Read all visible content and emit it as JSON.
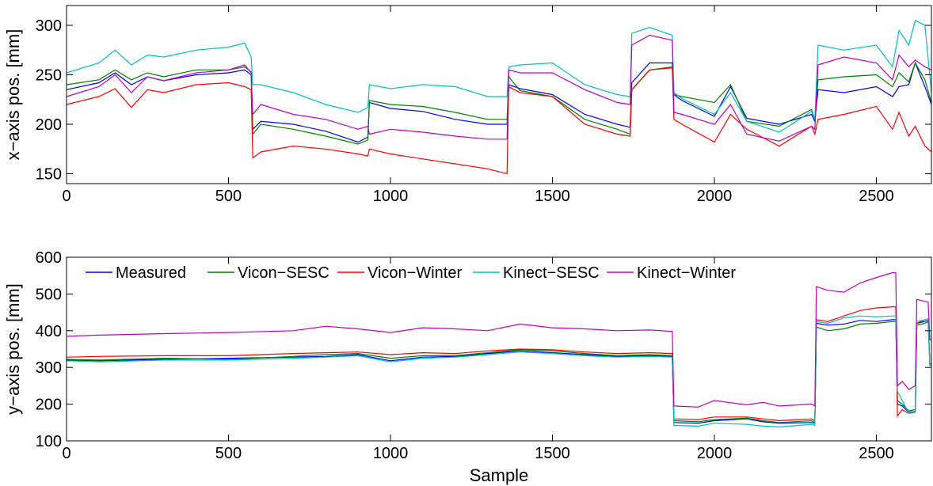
{
  "chart_data": [
    {
      "type": "line",
      "title": "",
      "xlabel": "",
      "ylabel": "x−axis pos. [mm]",
      "xlim": [
        0,
        2670
      ],
      "ylim": [
        140,
        320
      ],
      "xticks": [
        0,
        500,
        1000,
        1500,
        2000,
        2500
      ],
      "yticks": [
        150,
        200,
        250,
        300
      ],
      "grid": false,
      "series": [
        {
          "name": "Measured",
          "color": "#0000ff",
          "x": [
            0,
            100,
            150,
            200,
            250,
            300,
            400,
            500,
            550,
            570,
            575,
            600,
            700,
            800,
            900,
            930,
            935,
            1000,
            1100,
            1200,
            1300,
            1360,
            1365,
            1400,
            1500,
            1600,
            1700,
            1740,
            1745,
            1800,
            1870,
            1875,
            1900,
            2000,
            2050,
            2100,
            2200,
            2300,
            2310,
            2320,
            2400,
            2500,
            2550,
            2570,
            2600,
            2620,
            2650,
            2670
          ],
          "y": [
            235,
            242,
            252,
            240,
            248,
            244,
            250,
            252,
            255,
            250,
            195,
            203,
            200,
            193,
            182,
            187,
            222,
            216,
            213,
            205,
            200,
            200,
            240,
            236,
            230,
            210,
            200,
            197,
            242,
            262,
            262,
            230,
            224,
            208,
            238,
            206,
            200,
            210,
            203,
            235,
            232,
            238,
            228,
            238,
            240,
            262,
            238,
            220
          ]
        },
        {
          "name": "Vicon−SESC",
          "color": "#008000",
          "x": [
            0,
            100,
            150,
            200,
            250,
            300,
            400,
            500,
            550,
            570,
            575,
            600,
            700,
            800,
            900,
            930,
            935,
            1000,
            1100,
            1200,
            1300,
            1360,
            1365,
            1400,
            1500,
            1600,
            1700,
            1740,
            1745,
            1800,
            1870,
            1875,
            1900,
            2000,
            2050,
            2100,
            2200,
            2300,
            2310,
            2320,
            2400,
            2500,
            2550,
            2570,
            2600,
            2620,
            2650,
            2670
          ],
          "y": [
            240,
            245,
            255,
            245,
            252,
            248,
            255,
            255,
            258,
            253,
            190,
            200,
            195,
            188,
            180,
            184,
            224,
            220,
            218,
            212,
            205,
            205,
            248,
            234,
            228,
            205,
            195,
            190,
            235,
            255,
            258,
            230,
            228,
            222,
            240,
            203,
            198,
            215,
            205,
            245,
            248,
            250,
            238,
            252,
            243,
            262,
            245,
            222
          ]
        },
        {
          "name": "Vicon−Winter",
          "color": "#ff0000",
          "x": [
            0,
            100,
            150,
            200,
            250,
            300,
            400,
            500,
            550,
            570,
            575,
            600,
            700,
            800,
            900,
            930,
            935,
            1000,
            1100,
            1200,
            1300,
            1360,
            1365,
            1400,
            1500,
            1600,
            1700,
            1740,
            1745,
            1800,
            1870,
            1875,
            1900,
            2000,
            2050,
            2100,
            2200,
            2300,
            2310,
            2320,
            2400,
            2500,
            2550,
            2570,
            2600,
            2620,
            2650,
            2670
          ],
          "y": [
            220,
            228,
            236,
            217,
            235,
            232,
            240,
            242,
            238,
            235,
            166,
            172,
            178,
            175,
            170,
            168,
            175,
            170,
            165,
            160,
            155,
            150,
            238,
            232,
            228,
            200,
            190,
            188,
            235,
            255,
            257,
            205,
            200,
            182,
            210,
            195,
            178,
            198,
            190,
            205,
            210,
            218,
            195,
            212,
            188,
            198,
            178,
            172
          ]
        },
        {
          "name": "Kinect−SESC",
          "color": "#00c0c0",
          "x": [
            0,
            100,
            150,
            200,
            250,
            300,
            400,
            500,
            550,
            570,
            575,
            600,
            700,
            800,
            900,
            930,
            935,
            1000,
            1100,
            1200,
            1300,
            1360,
            1365,
            1400,
            1500,
            1600,
            1700,
            1740,
            1745,
            1800,
            1870,
            1875,
            1900,
            2000,
            2050,
            2100,
            2200,
            2300,
            2310,
            2320,
            2400,
            2500,
            2550,
            2570,
            2600,
            2620,
            2650,
            2670
          ],
          "y": [
            252,
            262,
            275,
            260,
            270,
            268,
            275,
            278,
            282,
            268,
            240,
            240,
            232,
            220,
            212,
            217,
            240,
            236,
            240,
            238,
            228,
            228,
            258,
            260,
            262,
            240,
            230,
            228,
            292,
            298,
            290,
            232,
            226,
            210,
            232,
            203,
            192,
            213,
            205,
            280,
            275,
            280,
            258,
            295,
            280,
            305,
            300,
            232
          ]
        },
        {
          "name": "Kinect−Winter",
          "color": "#c000c0",
          "x": [
            0,
            100,
            150,
            200,
            250,
            300,
            400,
            500,
            550,
            570,
            575,
            600,
            700,
            800,
            900,
            930,
            935,
            1000,
            1100,
            1200,
            1300,
            1360,
            1365,
            1400,
            1500,
            1600,
            1700,
            1740,
            1745,
            1800,
            1870,
            1875,
            1900,
            2000,
            2050,
            2100,
            2200,
            2300,
            2310,
            2320,
            2400,
            2500,
            2550,
            2570,
            2600,
            2620,
            2650,
            2670
          ],
          "y": [
            228,
            238,
            250,
            232,
            248,
            244,
            252,
            255,
            260,
            252,
            210,
            220,
            210,
            205,
            195,
            198,
            190,
            195,
            192,
            188,
            185,
            185,
            255,
            252,
            252,
            235,
            222,
            220,
            280,
            290,
            285,
            212,
            210,
            200,
            220,
            190,
            183,
            198,
            195,
            260,
            268,
            262,
            245,
            270,
            258,
            265,
            258,
            255
          ]
        }
      ]
    },
    {
      "type": "line",
      "title": "",
      "xlabel": "Sample",
      "ylabel": "y−axis pos. [mm]",
      "xlim": [
        0,
        2670
      ],
      "ylim": [
        100,
        600
      ],
      "xticks": [
        0,
        500,
        1000,
        1500,
        2000,
        2500
      ],
      "yticks": [
        100,
        200,
        300,
        400,
        500,
        600
      ],
      "grid": false,
      "legend": "top",
      "series": [
        {
          "name": "Measured",
          "color": "#0000ff",
          "x": [
            0,
            100,
            300,
            500,
            700,
            800,
            900,
            1000,
            1100,
            1200,
            1300,
            1400,
            1500,
            1600,
            1700,
            1800,
            1870,
            1875,
            1950,
            2000,
            2100,
            2150,
            2200,
            2300,
            2310,
            2315,
            2350,
            2400,
            2450,
            2500,
            2550,
            2560,
            2565,
            2580,
            2600,
            2620,
            2625,
            2650,
            2660,
            2665,
            2670
          ],
          "y": [
            320,
            318,
            322,
            325,
            328,
            330,
            335,
            318,
            328,
            330,
            338,
            345,
            340,
            335,
            330,
            332,
            330,
            150,
            148,
            155,
            160,
            152,
            148,
            150,
            148,
            420,
            415,
            418,
            428,
            425,
            430,
            430,
            200,
            195,
            178,
            180,
            420,
            425,
            428,
            310,
            310
          ]
        },
        {
          "name": "Vicon−SESC",
          "color": "#008000",
          "x": [
            0,
            100,
            300,
            500,
            700,
            800,
            900,
            1000,
            1100,
            1200,
            1300,
            1400,
            1500,
            1600,
            1700,
            1800,
            1870,
            1875,
            1950,
            2000,
            2100,
            2150,
            2200,
            2300,
            2310,
            2315,
            2350,
            2400,
            2450,
            2500,
            2550,
            2560,
            2565,
            2580,
            2600,
            2620,
            2625,
            2650,
            2660,
            2665,
            2670
          ],
          "y": [
            322,
            320,
            325,
            322,
            330,
            335,
            338,
            325,
            332,
            332,
            340,
            348,
            345,
            338,
            332,
            335,
            332,
            155,
            152,
            158,
            162,
            155,
            150,
            155,
            150,
            410,
            400,
            405,
            418,
            420,
            425,
            425,
            210,
            200,
            182,
            185,
            415,
            420,
            425,
            305,
            305
          ]
        },
        {
          "name": "Vicon−Winter",
          "color": "#ff0000",
          "x": [
            0,
            100,
            300,
            500,
            700,
            800,
            900,
            1000,
            1100,
            1200,
            1300,
            1400,
            1500,
            1600,
            1700,
            1800,
            1870,
            1875,
            1950,
            2000,
            2100,
            2150,
            2200,
            2300,
            2310,
            2315,
            2350,
            2400,
            2450,
            2500,
            2550,
            2560,
            2565,
            2580,
            2600,
            2620,
            2625,
            2650,
            2660,
            2665,
            2670
          ],
          "y": [
            328,
            330,
            332,
            332,
            338,
            340,
            342,
            335,
            340,
            338,
            345,
            350,
            348,
            342,
            338,
            340,
            338,
            160,
            158,
            165,
            165,
            160,
            155,
            160,
            155,
            430,
            425,
            440,
            455,
            462,
            465,
            465,
            168,
            185,
            175,
            178,
            420,
            430,
            432,
            310,
            310
          ]
        },
        {
          "name": "Kinect−SESC",
          "color": "#00c0c0",
          "x": [
            0,
            100,
            300,
            500,
            700,
            800,
            900,
            1000,
            1100,
            1200,
            1300,
            1400,
            1500,
            1600,
            1700,
            1800,
            1870,
            1875,
            1950,
            2000,
            2100,
            2150,
            2200,
            2300,
            2310,
            2315,
            2350,
            2400,
            2450,
            2500,
            2550,
            2560,
            2565,
            2580,
            2600,
            2620,
            2625,
            2650,
            2660,
            2665,
            2670
          ],
          "y": [
            318,
            315,
            320,
            320,
            325,
            328,
            332,
            315,
            325,
            328,
            335,
            342,
            338,
            332,
            328,
            330,
            328,
            142,
            140,
            148,
            145,
            140,
            138,
            145,
            142,
            425,
            420,
            435,
            440,
            438,
            440,
            440,
            235,
            210,
            175,
            180,
            425,
            430,
            432,
            305,
            305
          ]
        },
        {
          "name": "Kinect−Winter",
          "color": "#c000c0",
          "x": [
            0,
            100,
            300,
            500,
            700,
            800,
            900,
            1000,
            1100,
            1200,
            1300,
            1400,
            1500,
            1600,
            1700,
            1800,
            1870,
            1875,
            1950,
            2000,
            2100,
            2150,
            2200,
            2300,
            2310,
            2315,
            2350,
            2400,
            2450,
            2500,
            2550,
            2560,
            2565,
            2580,
            2600,
            2620,
            2625,
            2650,
            2660,
            2665,
            2670
          ],
          "y": [
            385,
            388,
            392,
            395,
            400,
            412,
            405,
            395,
            408,
            405,
            400,
            418,
            408,
            405,
            400,
            402,
            398,
            195,
            192,
            210,
            198,
            205,
            195,
            200,
            195,
            520,
            510,
            505,
            530,
            545,
            558,
            558,
            250,
            262,
            240,
            250,
            485,
            480,
            478,
            375,
            375
          ]
        }
      ]
    }
  ]
}
